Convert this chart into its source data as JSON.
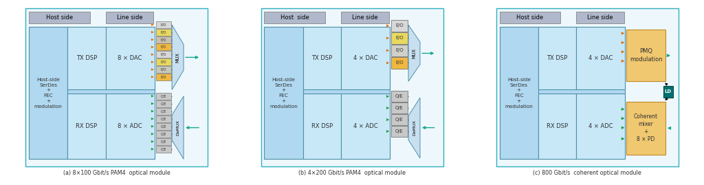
{
  "bg_color": "#ffffff",
  "outer_border_color": "#30b0c0",
  "outer_border_fill": "#eef8fc",
  "host_side_fill": "#b0d8f0",
  "line_side_fill": "#c8e8f8",
  "header_fill": "#b0b8cc",
  "mux_fill": "#c8dff0",
  "eo_colors_8": [
    "#e0e0e0",
    "#e8d870",
    "#d0c8b8",
    "#f0c060",
    "#e0e0e0",
    "#e8d870",
    "#d0d0c0",
    "#f0c060"
  ],
  "oe_color": "#c8c8c8",
  "pmq_fill": "#f0c870",
  "coherent_fill": "#f0c870",
  "ld_fill": "#007070",
  "arrow_orange": "#e07818",
  "arrow_green": "#28a040",
  "arrow_teal": "#18a890",
  "caption_a": "(a) 8×100 Gbit/s PAM4  optical module",
  "caption_b": "(b) 4×200 Gbit/s PAM4  optical module",
  "caption_c": "(c) 800 Gbit/s  coherent optical module",
  "diagram_a": {
    "eo_colors": [
      "#d8d8d8",
      "#e8d860",
      "#c8c0b0",
      "#f0b840",
      "#d8d8d8",
      "#e8d860",
      "#c8c8b8",
      "#f0b840"
    ]
  }
}
